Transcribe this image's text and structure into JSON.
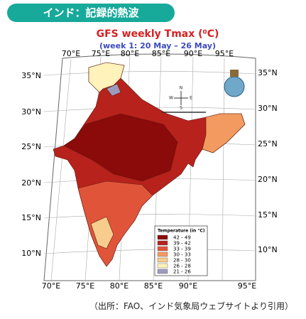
{
  "header": {
    "title": "インド：記録的熱波"
  },
  "map": {
    "title": "GFS weekly Tmax (⁰C)",
    "subtitle": "(week 1: 20 May – 26 May)",
    "lon_labels_top": [
      "70°E",
      "75°E",
      "80°E",
      "85°E",
      "90°E",
      "95°E"
    ],
    "lon_labels_bottom": [
      "70°E",
      "75°E",
      "80°E",
      "85°E",
      "90°E",
      "95°E"
    ],
    "lat_labels_left": [
      "35°N",
      "30°N",
      "25°N",
      "20°N",
      "15°N",
      "10°N"
    ],
    "lat_labels_right": [
      "35°N",
      "30°N",
      "25°N",
      "20°N",
      "15°N",
      "10°N"
    ],
    "compass": {
      "n": "N",
      "e": "E",
      "s": "S",
      "w": "W"
    },
    "legend": {
      "title": "Temperature (in °C)",
      "entries": [
        {
          "label": "42 - 49",
          "color": "#8b0a0a"
        },
        {
          "label": "39 - 42",
          "color": "#b8221c"
        },
        {
          "label": "33 - 39",
          "color": "#e0553a"
        },
        {
          "label": "30 - 33",
          "color": "#f29a5f"
        },
        {
          "label": "28 - 30",
          "color": "#f8cc8c"
        },
        {
          "label": "26 - 28",
          "color": "#fff2bb"
        },
        {
          "label": "21 - 26",
          "color": "#9d9bbd"
        }
      ]
    }
  },
  "source": "（出所：FAO、インド気象局ウェブサイトより引用）"
}
